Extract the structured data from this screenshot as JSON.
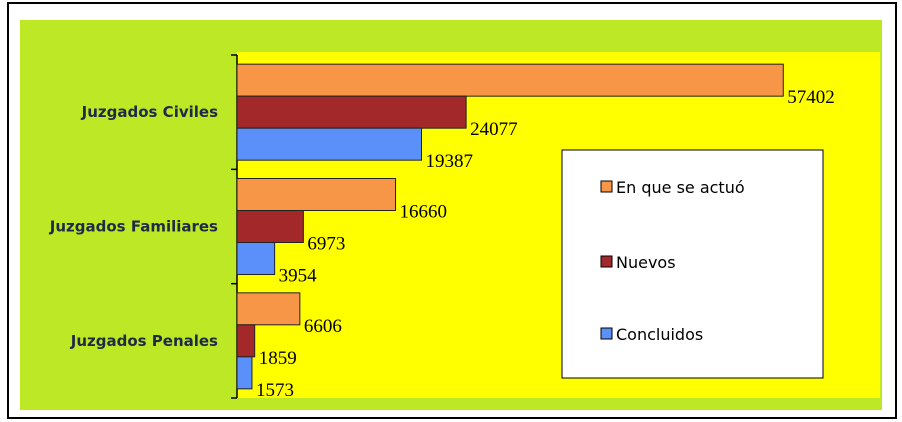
{
  "chart_data": {
    "type": "barh",
    "categories": [
      "Juzgados Civiles",
      "Juzgados Familiares",
      "Juzgados Penales"
    ],
    "series": [
      {
        "name": "En que se actuó",
        "color": "#f79646",
        "values": [
          57402,
          16660,
          6606
        ]
      },
      {
        "name": "Nuevos",
        "color": "#a3282a",
        "values": [
          24077,
          6973,
          1859
        ]
      },
      {
        "name": "Concluidos",
        "color": "#5b8ff9",
        "values": [
          19387,
          3954,
          1573
        ]
      }
    ],
    "xlim": [
      0,
      60000
    ],
    "legend": "right"
  }
}
